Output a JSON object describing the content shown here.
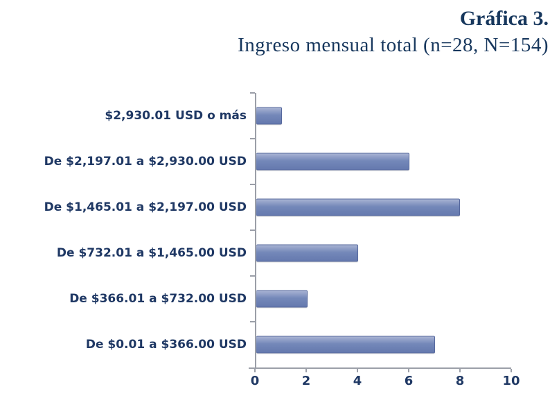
{
  "heading": {
    "line1": "Gráfica 3.",
    "line2": "Ingreso mensual total (n=28, N=154)"
  },
  "colors": {
    "heading_text": "#17375D",
    "axis_label_text": "#1F3864",
    "axis_line": "#9B9FA8",
    "bar_fill_top": "#A8B3D3",
    "bar_fill_bottom": "#6579AE",
    "bar_border": "#57699E"
  },
  "chart_data": {
    "type": "bar",
    "orientation": "horizontal",
    "title": "Gráfica 3. Ingreso mensual total (n=28, N=154)",
    "categories": [
      "$2,930.01 USD o más",
      "De $2,197.01 a $2,930.00 USD",
      "De $1,465.01 a $2,197.00 USD",
      "De $732.01 a $1,465.00 USD",
      "De $366.01 a $732.00 USD",
      "De $0.01 a $366.00 USD"
    ],
    "values": [
      1,
      6,
      8,
      4,
      2,
      7
    ],
    "xlabel": "",
    "ylabel": "",
    "xlim": [
      0,
      10
    ],
    "x_ticks": [
      0,
      2,
      4,
      6,
      8,
      10
    ],
    "grid": false,
    "legend": false
  }
}
